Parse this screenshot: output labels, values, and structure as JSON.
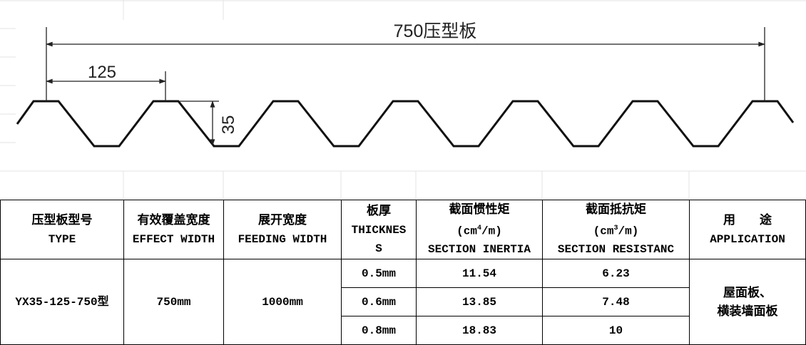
{
  "diagram": {
    "overall_label": "750压型板",
    "pitch_label": "125",
    "height_label": "35"
  },
  "table": {
    "headers": [
      {
        "zh": "压型板型号",
        "en": "TYPE"
      },
      {
        "zh": "有效覆盖宽度",
        "en": "EFFECT WIDTH"
      },
      {
        "zh": "展开宽度",
        "en": "FEEDING WIDTH"
      },
      {
        "zh": "板厚",
        "en1": "THICKNES",
        "en2": "S"
      },
      {
        "zh": "截面惯性矩",
        "unit_pre": "(cm",
        "unit_sup": "4",
        "unit_post": "/m)",
        "en": "SECTION INERTIA"
      },
      {
        "zh": "截面抵抗矩",
        "unit_pre": "(cm",
        "unit_sup": "3",
        "unit_post": "/m)",
        "en": "SECTION RESISTANC"
      },
      {
        "zh": "用　　途",
        "en": "APPLICATION"
      }
    ],
    "type": "YX35-125-750型",
    "effect_width": "750mm",
    "feeding_width": "1000mm",
    "rows": [
      {
        "thickness": "0.5mm",
        "inertia": "11.54",
        "resistance": "6.23"
      },
      {
        "thickness": "0.6mm",
        "inertia": "13.85",
        "resistance": "7.48"
      },
      {
        "thickness": "0.8mm",
        "inertia": "18.83",
        "resistance": "10"
      }
    ],
    "application_line1": "屋面板、",
    "application_line2": "横装墙面板"
  }
}
